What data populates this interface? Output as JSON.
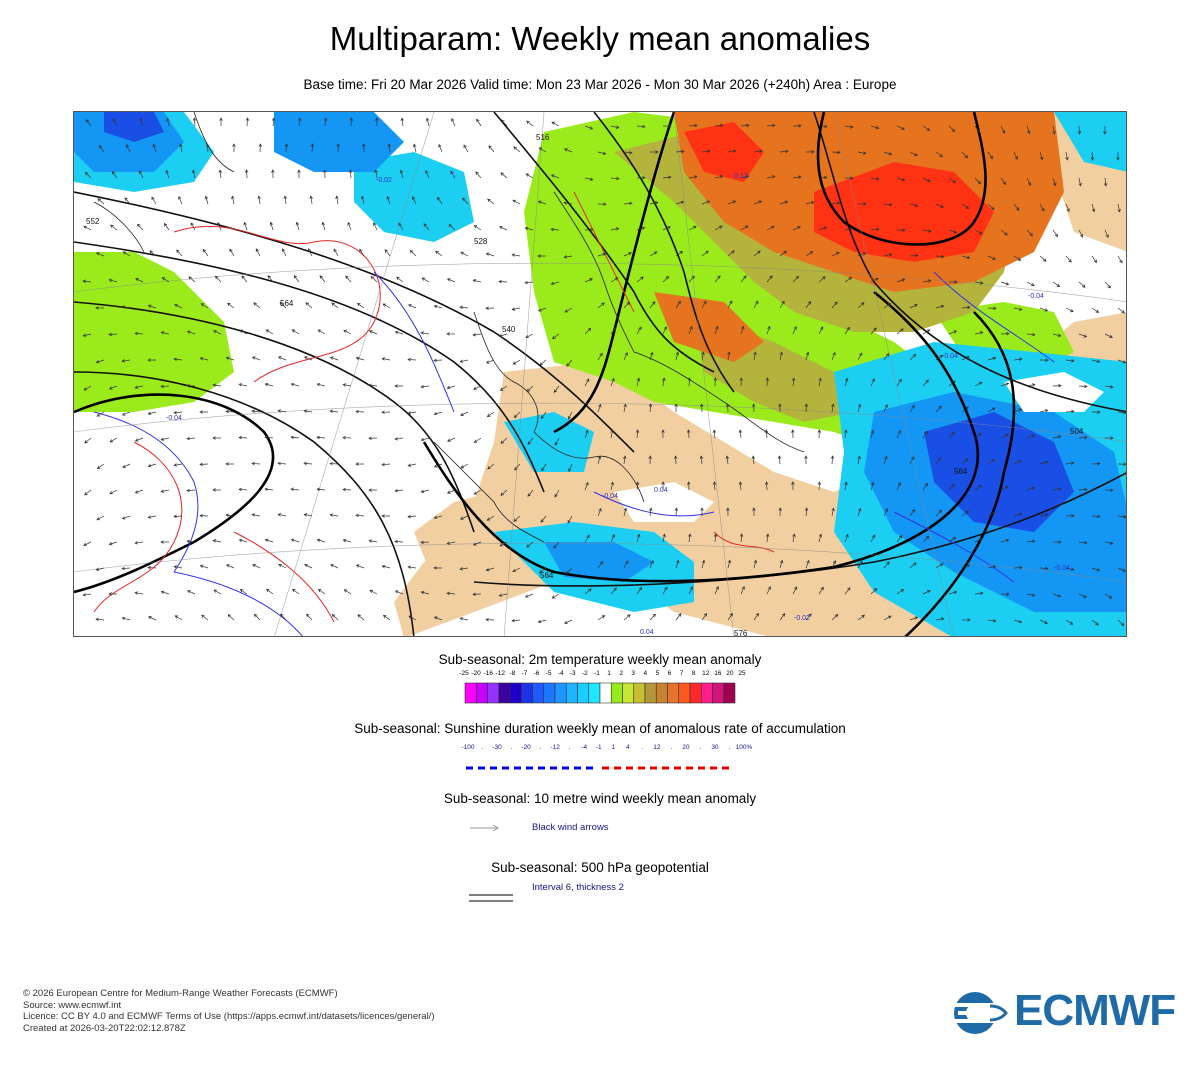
{
  "header": {
    "title": "Multiparam: Weekly mean anomalies",
    "subtitle": "Base time: Fri 20 Mar 2026 Valid time: Mon 23 Mar 2026 - Mon 30 Mar 2026 (+240h) Area : Europe"
  },
  "map": {
    "contour_labels": [
      "516",
      "528",
      "540",
      "552",
      "564",
      "564",
      "564",
      "576",
      "504"
    ],
    "anomaly_labels": [
      "-0.04",
      "-0.02",
      "-0.04",
      "0.04",
      "0.12",
      "-0.04",
      "-0.04",
      "-0.02",
      "-0.04",
      "0.04"
    ],
    "colors": {
      "land_tan": "#f2cfa1",
      "sea_white": "#ffffff",
      "cold_light": "#1ccff2",
      "cold_mid": "#1496f5",
      "cold_dark": "#1a4fe6",
      "warm_lime": "#9beb1c",
      "warm_olive": "#b4b43c",
      "warm_orange": "#e6731e",
      "warm_red": "#ff3214"
    }
  },
  "legend_temp": {
    "title": "Sub-seasonal: 2m temperature weekly mean anomaly",
    "ticks": [
      "-25",
      "-20",
      "-16",
      "-12",
      "-8",
      "-7",
      "-6",
      "-5",
      "-4",
      "-3",
      "-2",
      "-1",
      "1",
      "2",
      "3",
      "4",
      "5",
      "6",
      "7",
      "8",
      "12",
      "16",
      "20",
      "25"
    ],
    "colors": [
      "#ff00ff",
      "#c800ff",
      "#9632ff",
      "#3c00a0",
      "#1e00c8",
      "#1e32e6",
      "#1e5aff",
      "#1e78ff",
      "#1e96ff",
      "#1eb4ff",
      "#1ecdff",
      "#1ee6ff",
      "#ffffff",
      "#96eb1e",
      "#c8e632",
      "#c8be32",
      "#b4963c",
      "#c8822d",
      "#e6732d",
      "#ff5a1e",
      "#ff2828",
      "#ff1e8c",
      "#d2147d",
      "#a00050"
    ]
  },
  "legend_sunshine": {
    "title": "Sub-seasonal: Sunshine duration weekly mean of anomalous rate of accumulation",
    "ticks": [
      "-100",
      ".",
      "-30",
      ".",
      "-20",
      ".",
      "-12",
      ".",
      "-4",
      "-1",
      "1",
      "4",
      ".",
      "12",
      ".",
      "20",
      ".",
      "30",
      ".",
      "100%"
    ],
    "neg_color": "#0000e6",
    "pos_color": "#e60000"
  },
  "legend_wind": {
    "title": "Sub-seasonal: 10 metre wind weekly mean anomaly",
    "note": "Black wind arrows"
  },
  "legend_geo": {
    "title": "Sub-seasonal: 500 hPa geopotential",
    "note": "Interval 6, thickness 2"
  },
  "footer": {
    "line1": "© 2026 European Centre for Medium-Range Weather Forecasts (ECMWF)",
    "line2": "Source: www.ecmwf.int",
    "line3": "Licence: CC BY 4.0 and ECMWF Terms of Use (https://apps.ecmwf.int/datasets/licences/general/)",
    "line4": "Created at 2026-03-20T22:02:12.878Z"
  },
  "logo": {
    "text": "ECMWF",
    "color": "#1f6ba8"
  }
}
